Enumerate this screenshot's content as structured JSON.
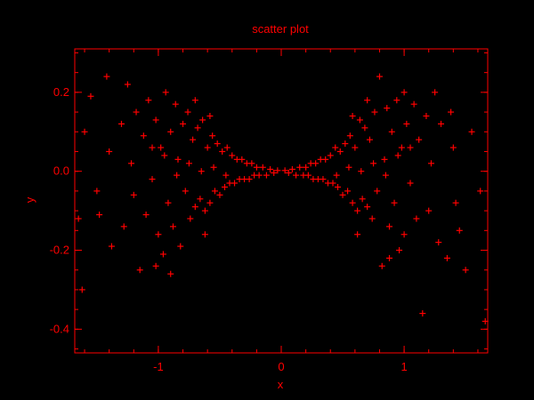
{
  "chart_data": {
    "type": "scatter",
    "title": "scatter plot",
    "xlabel": "x",
    "ylabel": "y",
    "xlim": [
      -1.68,
      1.68
    ],
    "ylim": [
      -0.46,
      0.31
    ],
    "x_ticks": [
      -1,
      0,
      1
    ],
    "x_tick_labels": [
      "-1",
      "0",
      "1"
    ],
    "y_ticks": [
      -0.4,
      -0.2,
      0.0,
      0.2
    ],
    "y_tick_labels": [
      "-0.4",
      "-0.2",
      "0.0",
      "0.2"
    ],
    "marker": "+",
    "grid": false,
    "color": "#ff0000",
    "background": "#000000",
    "series": [
      {
        "points": [
          [
            -1.62,
            -0.3
          ],
          [
            -1.55,
            0.19
          ],
          [
            -1.42,
            0.24
          ],
          [
            -1.48,
            -0.11
          ],
          [
            -1.4,
            0.05
          ],
          [
            -1.38,
            -0.19
          ],
          [
            -1.3,
            0.12
          ],
          [
            -1.28,
            -0.14
          ],
          [
            -1.25,
            0.22
          ],
          [
            -1.22,
            0.02
          ],
          [
            -1.2,
            -0.06
          ],
          [
            -1.18,
            0.15
          ],
          [
            -1.15,
            -0.25
          ],
          [
            -1.12,
            0.09
          ],
          [
            -1.1,
            -0.11
          ],
          [
            -1.08,
            0.18
          ],
          [
            -1.05,
            -0.02
          ],
          [
            -1.02,
            0.13
          ],
          [
            -1.0,
            -0.16
          ],
          [
            -0.98,
            0.06
          ],
          [
            -0.96,
            -0.21
          ],
          [
            -0.94,
            0.2
          ],
          [
            -0.92,
            -0.08
          ],
          [
            -0.9,
            0.1
          ],
          [
            -0.88,
            -0.14
          ],
          [
            -0.86,
            0.17
          ],
          [
            -0.84,
            0.03
          ],
          [
            -0.82,
            -0.19
          ],
          [
            -0.8,
            0.12
          ],
          [
            -0.78,
            -0.05
          ],
          [
            -0.76,
            0.15
          ],
          [
            -0.74,
            -0.12
          ],
          [
            -0.72,
            0.08
          ],
          [
            -0.7,
            -0.09
          ],
          [
            -0.68,
            0.11
          ],
          [
            -0.66,
            -0.07
          ],
          [
            -0.64,
            0.13
          ],
          [
            -0.62,
            -0.1
          ],
          [
            -0.6,
            0.06
          ],
          [
            -0.58,
            -0.08
          ],
          [
            -0.56,
            0.09
          ],
          [
            -0.54,
            -0.05
          ],
          [
            -0.52,
            0.07
          ],
          [
            -0.5,
            -0.06
          ],
          [
            -0.48,
            0.05
          ],
          [
            -0.46,
            -0.04
          ],
          [
            -0.44,
            0.06
          ],
          [
            -0.42,
            -0.03
          ],
          [
            -0.4,
            0.04
          ],
          [
            -0.38,
            -0.03
          ],
          [
            -0.36,
            0.03
          ],
          [
            -0.34,
            -0.02
          ],
          [
            -0.32,
            0.03
          ],
          [
            -0.3,
            -0.02
          ],
          [
            -0.28,
            0.02
          ],
          [
            -0.26,
            -0.02
          ],
          [
            -0.24,
            0.02
          ],
          [
            -0.22,
            -0.01
          ],
          [
            -0.2,
            0.01
          ],
          [
            -0.18,
            -0.01
          ],
          [
            -0.15,
            0.01
          ],
          [
            -0.12,
            -0.01
          ],
          [
            -0.09,
            0.005
          ],
          [
            -0.06,
            -0.004
          ],
          [
            -0.03,
            0.002
          ],
          [
            -0.85,
            -0.01
          ],
          [
            -0.75,
            0.02
          ],
          [
            -0.65,
            0.0
          ],
          [
            -0.55,
            0.01
          ],
          [
            -0.45,
            -0.01
          ],
          [
            -0.95,
            0.04
          ],
          [
            -1.05,
            0.06
          ],
          [
            -1.65,
            -0.12
          ],
          [
            -1.6,
            0.1
          ],
          [
            -1.5,
            -0.05
          ],
          [
            -0.7,
            0.18
          ],
          [
            -0.62,
            -0.16
          ],
          [
            -0.58,
            0.14
          ],
          [
            -0.9,
            -0.26
          ],
          [
            -1.02,
            -0.24
          ],
          [
            1.62,
            -0.05
          ],
          [
            1.55,
            0.1
          ],
          [
            1.45,
            -0.15
          ],
          [
            1.4,
            0.06
          ],
          [
            1.35,
            -0.22
          ],
          [
            1.3,
            0.12
          ],
          [
            1.28,
            -0.18
          ],
          [
            1.25,
            0.2
          ],
          [
            1.22,
            0.02
          ],
          [
            1.2,
            -0.1
          ],
          [
            1.18,
            0.14
          ],
          [
            1.15,
            -0.36
          ],
          [
            1.12,
            0.08
          ],
          [
            1.1,
            -0.12
          ],
          [
            1.08,
            0.17
          ],
          [
            1.05,
            -0.03
          ],
          [
            1.02,
            0.12
          ],
          [
            1.0,
            -0.16
          ],
          [
            0.98,
            0.06
          ],
          [
            0.96,
            -0.2
          ],
          [
            0.94,
            0.18
          ],
          [
            0.92,
            -0.08
          ],
          [
            0.9,
            0.1
          ],
          [
            0.88,
            -0.14
          ],
          [
            0.86,
            0.16
          ],
          [
            0.84,
            0.03
          ],
          [
            0.82,
            -0.24
          ],
          [
            0.8,
            0.24
          ],
          [
            0.78,
            -0.05
          ],
          [
            0.76,
            0.15
          ],
          [
            0.74,
            -0.12
          ],
          [
            0.72,
            0.08
          ],
          [
            0.7,
            -0.09
          ],
          [
            0.68,
            0.11
          ],
          [
            0.66,
            -0.07
          ],
          [
            0.64,
            0.13
          ],
          [
            0.62,
            -0.1
          ],
          [
            0.6,
            0.06
          ],
          [
            0.58,
            -0.08
          ],
          [
            0.56,
            0.09
          ],
          [
            0.54,
            -0.05
          ],
          [
            0.52,
            0.07
          ],
          [
            0.5,
            -0.06
          ],
          [
            0.48,
            0.05
          ],
          [
            0.46,
            -0.04
          ],
          [
            0.44,
            0.06
          ],
          [
            0.42,
            -0.03
          ],
          [
            0.4,
            0.04
          ],
          [
            0.38,
            -0.03
          ],
          [
            0.36,
            0.03
          ],
          [
            0.34,
            -0.02
          ],
          [
            0.32,
            0.03
          ],
          [
            0.3,
            -0.02
          ],
          [
            0.28,
            0.02
          ],
          [
            0.26,
            -0.02
          ],
          [
            0.24,
            0.02
          ],
          [
            0.22,
            -0.01
          ],
          [
            0.2,
            0.01
          ],
          [
            0.18,
            -0.01
          ],
          [
            0.15,
            0.01
          ],
          [
            0.12,
            -0.01
          ],
          [
            0.09,
            0.005
          ],
          [
            0.06,
            -0.004
          ],
          [
            0.03,
            0.002
          ],
          [
            0.85,
            -0.01
          ],
          [
            0.75,
            0.02
          ],
          [
            0.65,
            0.0
          ],
          [
            0.55,
            0.01
          ],
          [
            0.45,
            -0.01
          ],
          [
            0.95,
            0.04
          ],
          [
            1.05,
            0.06
          ],
          [
            1.66,
            -0.38
          ],
          [
            1.5,
            -0.25
          ],
          [
            1.42,
            -0.08
          ],
          [
            0.7,
            0.18
          ],
          [
            0.62,
            -0.16
          ],
          [
            0.58,
            0.14
          ],
          [
            0.88,
            -0.22
          ],
          [
            1.0,
            0.2
          ],
          [
            1.38,
            0.15
          ]
        ]
      }
    ]
  }
}
